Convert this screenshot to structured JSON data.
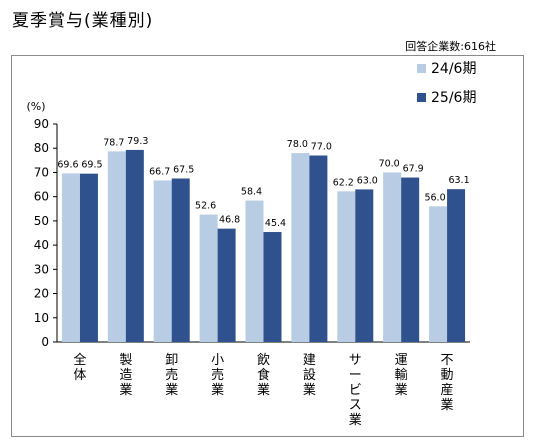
{
  "title": "夏季賞与(業種別)",
  "note": "回答企業数:616社",
  "chart_data": {
    "type": "bar",
    "unit_label": "(%)",
    "categories": [
      "全体",
      "製造業",
      "卸売業",
      "小売業",
      "飲食業",
      "建設業",
      "サービス業",
      "運輸業",
      "不動産業"
    ],
    "series": [
      {
        "name": "24/6期",
        "color": "#b8cce4",
        "values": [
          69.6,
          78.7,
          66.7,
          52.6,
          58.4,
          78.0,
          62.2,
          70.0,
          56.0
        ]
      },
      {
        "name": "25/6期",
        "color": "#2f528f",
        "values": [
          69.5,
          79.3,
          67.5,
          46.8,
          45.4,
          77.0,
          63.0,
          67.9,
          63.1
        ]
      }
    ],
    "ylim": [
      0,
      90
    ],
    "yticks": [
      0,
      10,
      20,
      30,
      40,
      50,
      60,
      70,
      80,
      90
    ],
    "legend": "top-right",
    "grid": false
  }
}
